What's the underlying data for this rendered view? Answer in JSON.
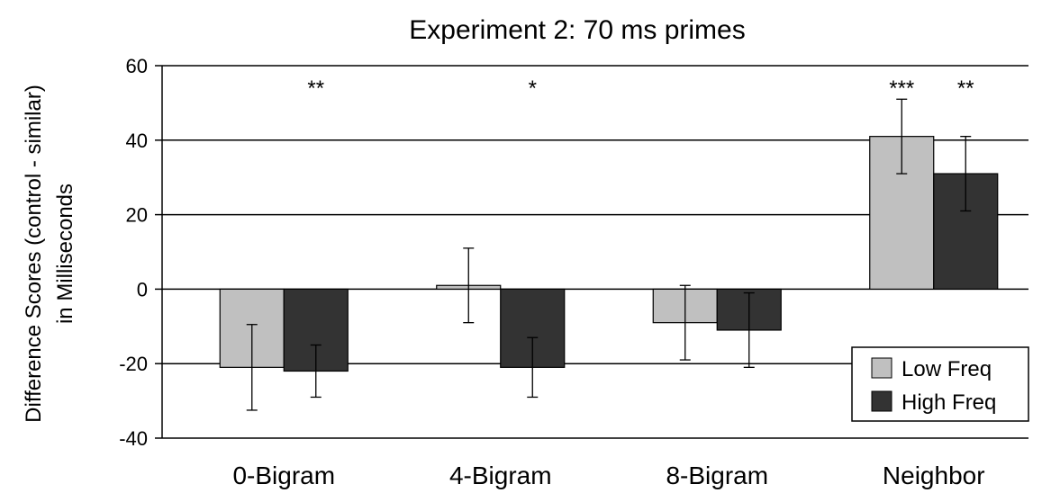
{
  "chart_data": {
    "type": "bar",
    "title": "Experiment 2: 70 ms primes",
    "ylabel_line1": "Difference Scores (control - similar)",
    "ylabel_line2": "in Milliseconds",
    "xlabel": "",
    "categories": [
      "0-Bigram",
      "4-Bigram",
      "8-Bigram",
      "Neighbor"
    ],
    "series": [
      {
        "name": "Low Freq",
        "color": "#c0c0c0",
        "values": [
          -21,
          1,
          -9,
          41
        ],
        "error": [
          11.5,
          10,
          10,
          10
        ]
      },
      {
        "name": "High Freq",
        "color": "#333333",
        "values": [
          -22,
          -21,
          -11,
          31
        ],
        "error": [
          7,
          8,
          10,
          10
        ]
      }
    ],
    "significance": [
      {
        "category": 0,
        "series": 1,
        "label": "**"
      },
      {
        "category": 1,
        "series": 1,
        "label": "*"
      },
      {
        "category": 3,
        "series": 0,
        "label": "***"
      },
      {
        "category": 3,
        "series": 1,
        "label": "**"
      }
    ],
    "ylim": [
      -40,
      60
    ],
    "yticks": [
      -40,
      -20,
      0,
      20,
      40,
      60
    ],
    "gridlines": [
      60,
      40,
      20,
      0,
      -20
    ],
    "legend_position": "bottom-right"
  }
}
